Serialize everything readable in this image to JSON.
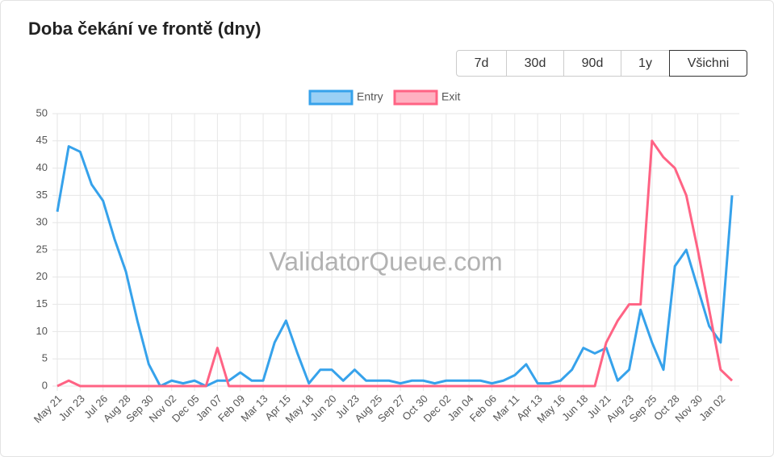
{
  "header": {
    "title": "Doba čekání ve frontě (dny)"
  },
  "controls": {
    "ranges": [
      "7d",
      "30d",
      "90d",
      "1y",
      "Všichni"
    ]
  },
  "chart_data": {
    "type": "line",
    "watermark": "ValidatorQueue.com",
    "categories": [
      "May 21",
      null,
      "Jun 23",
      null,
      "Jul 26",
      null,
      "Aug 28",
      null,
      "Sep 30",
      null,
      "Nov 02",
      null,
      "Dec 05",
      null,
      "Jan 07",
      null,
      "Feb 09",
      null,
      "Mar 13",
      null,
      "Apr 15",
      null,
      "May 18",
      null,
      "Jun 20",
      null,
      "Jul 23",
      null,
      "Aug 25",
      null,
      "Sep 27",
      null,
      "Oct 30",
      null,
      "Dec 02",
      null,
      "Jan 04",
      null,
      "Feb 06",
      null,
      "Mar 11",
      null,
      "Apr 13",
      null,
      "May 16",
      null,
      "Jun 18",
      null,
      "Jul 21",
      null,
      "Aug 23",
      null,
      "Sep 25",
      null,
      "Oct 28",
      null,
      "Nov 30",
      null,
      "Jan 02",
      null
    ],
    "series": [
      {
        "name": "Entry",
        "color": "#36a2eb",
        "values": [
          32,
          44,
          43,
          37,
          34,
          27,
          21,
          12,
          4,
          0,
          1,
          0.5,
          1,
          0,
          1,
          1,
          2.5,
          1,
          1,
          8,
          12,
          6,
          0.5,
          3,
          3,
          1,
          3,
          1,
          1,
          1,
          0.5,
          1,
          1,
          0.5,
          1,
          1,
          1,
          1,
          0.5,
          1,
          2,
          4,
          0.5,
          0.5,
          1,
          3,
          7,
          6,
          7,
          1,
          3,
          14,
          8,
          3,
          22,
          25,
          18,
          11,
          8,
          35
        ]
      },
      {
        "name": "Exit",
        "color": "#ff6384",
        "values": [
          0,
          1,
          0,
          0,
          0,
          0,
          0,
          0,
          0,
          0,
          0,
          0,
          0,
          0,
          7,
          0,
          0,
          0,
          0,
          0,
          0,
          0,
          0,
          0,
          0,
          0,
          0,
          0,
          0,
          0,
          0,
          0,
          0,
          0,
          0,
          0,
          0,
          0,
          0,
          0,
          0,
          0,
          0,
          0,
          0,
          0,
          0,
          0,
          8,
          12,
          15,
          15,
          45,
          42,
          40,
          35,
          25,
          14,
          3,
          1
        ]
      }
    ],
    "ylim": [
      0,
      50
    ],
    "yticks": [
      0,
      5,
      10,
      15,
      20,
      25,
      30,
      35,
      40,
      45,
      50
    ],
    "grid": true
  }
}
